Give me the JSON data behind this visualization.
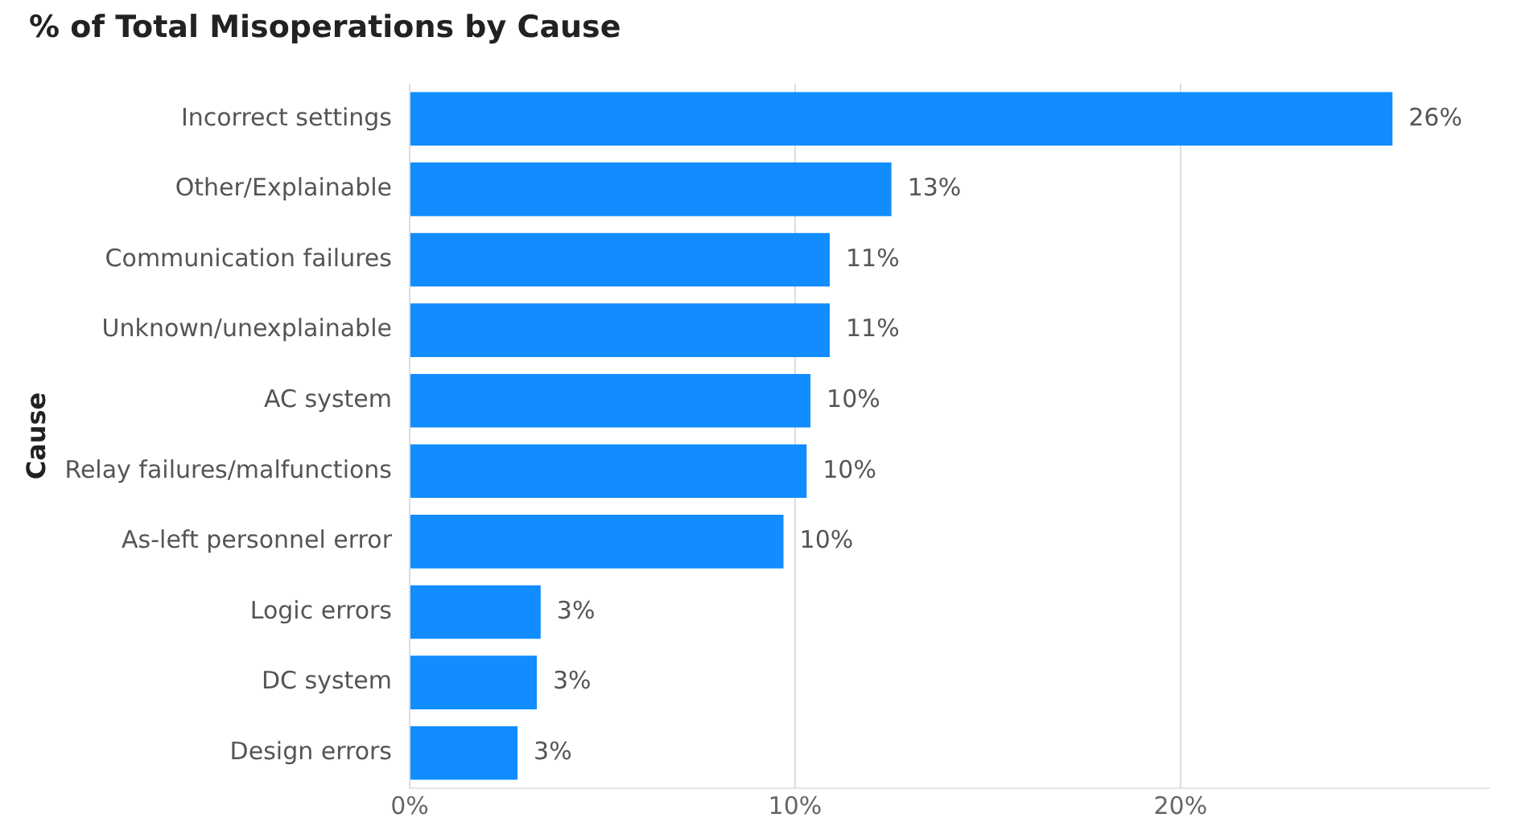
{
  "chart_data": {
    "type": "bar",
    "orientation": "horizontal",
    "title": "% of Total Misoperations by Cause",
    "ylabel": "Cause",
    "categories": [
      "Incorrect settings",
      "Other/Explainable",
      "Communication failures",
      "Unknown/unexplainable",
      "AC system",
      "Relay failures/malfunctions",
      "As-left personnel error",
      "Logic errors",
      "DC system",
      "Design errors"
    ],
    "values": [
      25.5,
      12.5,
      10.9,
      10.9,
      10.4,
      10.3,
      9.7,
      3.4,
      3.3,
      2.8
    ],
    "value_labels": [
      "26%",
      "13%",
      "11%",
      "11%",
      "10%",
      "10%",
      "10%",
      "3%",
      "3%",
      "3%"
    ],
    "color": "#118dff",
    "xlim": [
      0,
      28
    ],
    "xticks": [
      {
        "value": 0,
        "label": "0%"
      },
      {
        "value": 10,
        "label": "10%"
      },
      {
        "value": 20,
        "label": "20%"
      }
    ],
    "grid": "x",
    "legend": false
  }
}
